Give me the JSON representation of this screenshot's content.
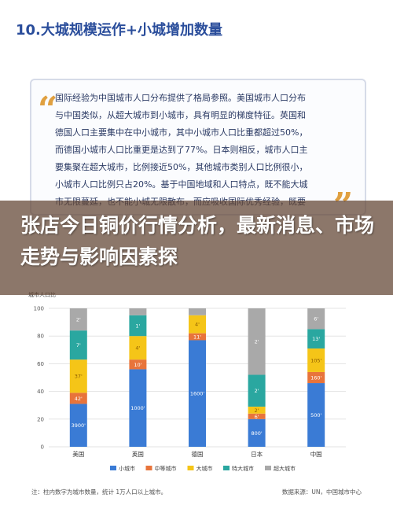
{
  "header": {
    "title": "10.大城规模运作+小城增加数量"
  },
  "quote": {
    "open_mark": "“",
    "close_mark": "”",
    "lines": [
      "国际经验为中国城市人口分布提供了格局参照。美国城市人口分布",
      "与中国类似，从超大城市到小城市，具有明显的梯度特征。英国和",
      "德国人口主要集中在中小城市，其中小城市人口比重都超过50%，",
      "而德国小城市人口比重更是达到了77%。日本则相反，城市人口主",
      "要集聚在超大城市，比例接近50%，其他城市类别人口比例很小，",
      "小城市人口比例只占20%。基于中国地域和人口特点，既不能大城",
      "市无限蔓延，也不能小城无限散布，而应吸收国际优秀经验，既要"
    ]
  },
  "overlay": {
    "title": "张店今日铜价行情分析，最新消息、市场走势与影响因素探"
  },
  "chart_data": {
    "type": "bar",
    "stacked": true,
    "percent": true,
    "ylabel": "城市人口比",
    "ylim": [
      0,
      100
    ],
    "yticks": [
      0,
      20,
      40,
      60,
      80,
      100
    ],
    "categories": [
      "美国",
      "英国",
      "德国",
      "日本",
      "中国"
    ],
    "series": [
      {
        "name": "小城市",
        "color": "#3a7bd5",
        "values": [
          31,
          56,
          77,
          20,
          46
        ],
        "labels": [
          "3900'",
          "1000'",
          "1600'",
          "800'",
          "500'"
        ]
      },
      {
        "name": "中等城市",
        "color": "#e8743b",
        "values": [
          8,
          7,
          5,
          4,
          8
        ],
        "labels": [
          "42'",
          "10'",
          "11'",
          "6'",
          "160'"
        ]
      },
      {
        "name": "大城市",
        "color": "#f5c518",
        "values": [
          24,
          17,
          13,
          5,
          17
        ],
        "labels": [
          "37'",
          "4'",
          "4'",
          "2'",
          "105'"
        ]
      },
      {
        "name": "特大城市",
        "color": "#2aa7a0",
        "values": [
          21,
          15,
          0,
          23,
          14
        ],
        "labels": [
          "7'",
          "1'",
          "",
          "2'",
          "13'"
        ]
      },
      {
        "name": "超大城市",
        "color": "#a9a9a9",
        "values": [
          16,
          5,
          5,
          48,
          15
        ],
        "labels": [
          "2'",
          "",
          "",
          "2'",
          "6'"
        ]
      }
    ]
  },
  "source": {
    "note": "注：柱内数字为城市数量，统计 1万人口以上城市。",
    "credit": "数据来源：UN，中国城市中心"
  }
}
